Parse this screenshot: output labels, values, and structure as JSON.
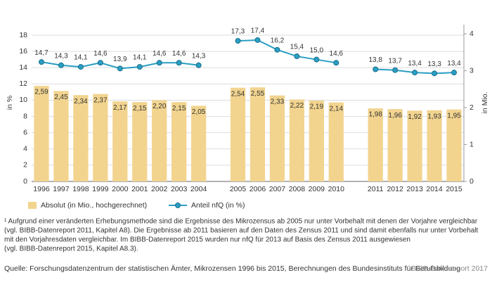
{
  "chart_data": {
    "type": "bar_line",
    "categories": [
      "1996",
      "1997",
      "1998",
      "1999",
      "2000",
      "2001",
      "2002",
      "2003",
      "2004",
      null,
      "2005",
      "2006",
      "2007",
      "2008",
      "2009",
      "2010",
      null,
      "2011",
      "2012",
      "2013",
      "2014",
      "2015"
    ],
    "series": [
      {
        "name": "Absolut (in Mio., hochgerechnet)",
        "type": "bar",
        "axis": "y2",
        "color": "#f2d48f",
        "values": [
          2.59,
          2.45,
          2.34,
          2.37,
          2.17,
          2.15,
          2.2,
          2.15,
          2.05,
          null,
          2.54,
          2.55,
          2.33,
          2.22,
          2.19,
          2.14,
          null,
          1.98,
          1.96,
          1.92,
          1.93,
          1.95
        ],
        "value_labels": [
          "2,59",
          "2,45",
          "2,34",
          "2,37",
          "2,17",
          "2,15",
          "2,20",
          "2,15",
          "2,05",
          null,
          "2,54",
          "2,55",
          "2,33",
          "2,22",
          "2,19",
          "2,14",
          null,
          "1,98",
          "1,96",
          "1,92",
          "1,93",
          "1,95"
        ]
      },
      {
        "name": "Anteil nfQ (in %)",
        "type": "line",
        "color": "#2a9fc4",
        "values": [
          14.7,
          14.3,
          14.1,
          14.6,
          13.9,
          14.1,
          14.6,
          14.6,
          14.3,
          null,
          17.3,
          17.4,
          16.2,
          15.4,
          15.0,
          14.6,
          null,
          13.8,
          13.7,
          13.4,
          13.3,
          13.4
        ],
        "value_labels": [
          "14,7",
          "14,3",
          "14,1",
          "14,6",
          "13,9",
          "14,1",
          "14,6",
          "14,6",
          "14,3",
          null,
          "17,3",
          "17,4",
          "16,2",
          "15,4",
          "15,0",
          "14,6",
          null,
          "13,8",
          "13,7",
          "13,4",
          "13,3",
          "13,4"
        ]
      }
    ],
    "ylabel": "in %",
    "ylim": [
      0,
      19.3
    ],
    "yticks": [
      0,
      2,
      4,
      6,
      8,
      10,
      12,
      14,
      16,
      18
    ],
    "y2label": "in Mio.",
    "y2lim": [
      0,
      4.25
    ],
    "y2ticks": [
      0,
      1,
      2,
      3,
      4
    ],
    "grid": true,
    "notes": [
      "¹ Aufgrund einer veränderten Erhebungsmethode sind die Ergebnisse des Mikrozensus ab 2005 nur unter Vorbehalt mit denen der Vorjahre vergleichbar",
      "(vgl. BIBB-Datenreport 2011, Kapitel A8). Die Ergebnisse ab 2011 basieren auf den Daten des Zensus 2011 und sind damit ebenfalls nur unter Vorbehalt",
      "mit den Vorjahresdaten vergleichbar. Im BIBB-Datenreport 2015 wurden nur nfQ für 2013 auf Basis des Zensus 2011 ausgewiesen",
      "(vgl. BIBB-Datenreport 2015, Kapitel A8.3)."
    ],
    "source": "Quelle: Forschungsdatenzentrum der statistischen Ämter, Mikrozensen 1996 bis 2015, Berechnungen des Bundesinstituts für Berufsbildung",
    "credit": "BIBB-Datenreport 2017"
  }
}
